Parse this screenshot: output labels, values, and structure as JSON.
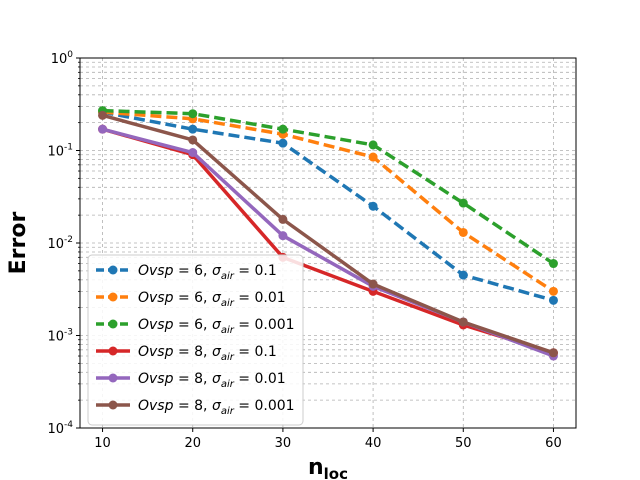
{
  "chart_data": {
    "type": "line",
    "title": "",
    "xlabel": "n",
    "xlabel_sub": "loc",
    "ylabel": "Error",
    "yscale": "log",
    "ylim": [
      0.0001,
      1
    ],
    "xlim": [
      7.5,
      62.5
    ],
    "grid": true,
    "legend_position": "lower-left",
    "x": [
      10,
      20,
      30,
      40,
      50,
      60
    ],
    "x_ticks": [
      "10",
      "20",
      "30",
      "40",
      "50",
      "60"
    ],
    "y_ticks": [
      {
        "base": "10",
        "exp": "-4",
        "value": 0.0001
      },
      {
        "base": "10",
        "exp": "-3",
        "value": 0.001
      },
      {
        "base": "10",
        "exp": "-2",
        "value": 0.01
      },
      {
        "base": "10",
        "exp": "-1",
        "value": 0.1
      },
      {
        "base": "10",
        "exp": "0",
        "value": 1
      }
    ],
    "series": [
      {
        "name": "Ovsp = 6, σair = 0.1",
        "ovsp": "6",
        "sigma": "0.1",
        "color": "#1f77b4",
        "dashed": true,
        "values": [
          0.26,
          0.17,
          0.12,
          0.025,
          0.0045,
          0.0024
        ]
      },
      {
        "name": "Ovsp = 6, σair = 0.01",
        "ovsp": "6",
        "sigma": "0.01",
        "color": "#ff7f0e",
        "dashed": true,
        "values": [
          0.26,
          0.22,
          0.15,
          0.085,
          0.013,
          0.003
        ]
      },
      {
        "name": "Ovsp = 6, σair = 0.001",
        "ovsp": "6",
        "sigma": "0.001",
        "color": "#2ca02c",
        "dashed": true,
        "values": [
          0.27,
          0.25,
          0.17,
          0.115,
          0.027,
          0.006
        ]
      },
      {
        "name": "Ovsp = 8, σair = 0.1",
        "ovsp": "8",
        "sigma": "0.1",
        "color": "#d62728",
        "dashed": false,
        "values": [
          0.17,
          0.09,
          0.007,
          0.003,
          0.0013,
          0.00065
        ]
      },
      {
        "name": "Ovsp = 8, σair = 0.01",
        "ovsp": "8",
        "sigma": "0.01",
        "color": "#9467bd",
        "dashed": false,
        "values": [
          0.17,
          0.095,
          0.012,
          0.0034,
          0.0014,
          0.0006
        ]
      },
      {
        "name": "Ovsp = 8, σair = 0.001",
        "ovsp": "8",
        "sigma": "0.001",
        "color": "#8c564b",
        "dashed": false,
        "values": [
          0.24,
          0.13,
          0.018,
          0.0036,
          0.0014,
          0.00065
        ]
      }
    ]
  }
}
